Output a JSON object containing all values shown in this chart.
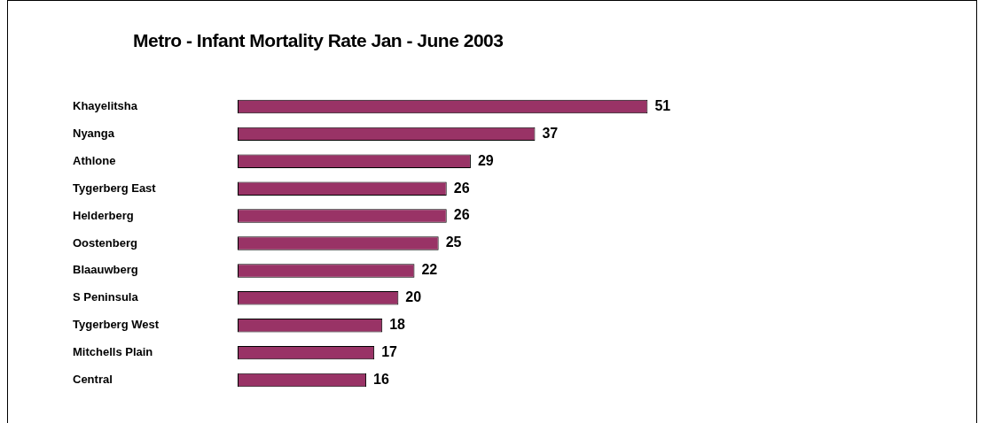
{
  "chart_data": {
    "type": "bar",
    "orientation": "horizontal",
    "title": "Metro - Infant Mortality Rate Jan - June 2003",
    "categories": [
      "Khayelitsha",
      "Nyanga",
      "Athlone",
      "Tygerberg East",
      "Helderberg",
      "Oostenberg",
      "Blaauwberg",
      "S Peninsula",
      "Tygerberg West",
      "Mitchells Plain",
      "Central"
    ],
    "values": [
      51,
      37,
      29,
      26,
      26,
      25,
      22,
      20,
      18,
      17,
      16
    ],
    "color": "#993366",
    "data_labels": true,
    "legend": false
  }
}
